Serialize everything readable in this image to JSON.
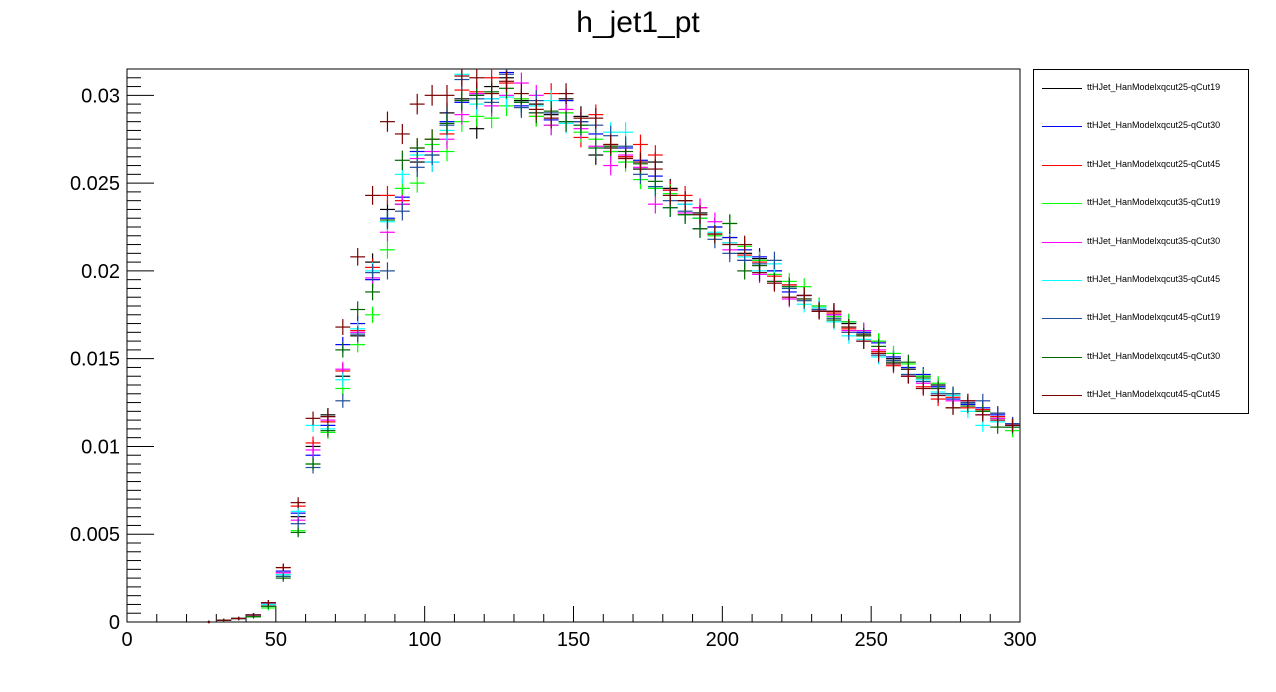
{
  "chart_data": {
    "type": "scatter",
    "title": "h_jet1_pt",
    "xlabel": "",
    "ylabel": "",
    "xlim": [
      0,
      300
    ],
    "ylim": [
      0,
      0.0315
    ],
    "x_ticks": [
      "0",
      "50",
      "100",
      "150",
      "200",
      "250",
      "300"
    ],
    "y_ticks": [
      "0",
      "0.005",
      "0.01",
      "0.015",
      "0.02",
      "0.025",
      "0.03"
    ],
    "x": [
      27.5,
      32.5,
      37.5,
      42.5,
      47.5,
      52.5,
      57.5,
      62.5,
      67.5,
      72.5,
      77.5,
      82.5,
      87.5,
      92.5,
      97.5,
      102.5,
      107.5,
      112.5,
      117.5,
      122.5,
      127.5,
      132.5,
      137.5,
      142.5,
      147.5,
      152.5,
      157.5,
      162.5,
      167.5,
      172.5,
      177.5,
      182.5,
      187.5,
      192.5,
      197.5,
      202.5,
      207.5,
      212.5,
      217.5,
      222.5,
      227.5,
      232.5,
      237.5,
      242.5,
      247.5,
      252.5,
      257.5,
      262.5,
      267.5,
      272.5,
      277.5,
      282.5,
      287.5,
      292.5,
      297.5
    ],
    "legend_position": "right",
    "grid": false,
    "series": [
      {
        "name": "ttHJet_HanModelxqcut25-qCut19",
        "color": "#000000",
        "values": [
          0,
          0.0001,
          0.0002,
          0.0004,
          0.001,
          0.0028,
          0.006,
          0.01,
          0.0118,
          0.014,
          0.0163,
          0.0205,
          0.0235,
          0.0238,
          0.0262,
          0.0266,
          0.029,
          0.0298,
          0.0281,
          0.0305,
          0.031,
          0.0297,
          0.0295,
          0.0289,
          0.0298,
          0.0288,
          0.0266,
          0.027,
          0.0265,
          0.0258,
          0.0262,
          0.0247,
          0.024,
          0.0233,
          0.0225,
          0.0219,
          0.021,
          0.0207,
          0.02,
          0.0192,
          0.0186,
          0.018,
          0.0177,
          0.017,
          0.0164,
          0.016,
          0.015,
          0.0144,
          0.014,
          0.0135,
          0.013,
          0.0124,
          0.0121,
          0.0119,
          0.0112
        ]
      },
      {
        "name": "ttHJet_HanModelxqcut25-qCut30",
        "color": "#0000ff",
        "values": [
          0,
          0.0001,
          0.0002,
          0.0004,
          0.0011,
          0.0029,
          0.0062,
          0.0095,
          0.0112,
          0.0158,
          0.017,
          0.0195,
          0.023,
          0.0242,
          0.0268,
          0.0262,
          0.0285,
          0.0296,
          0.03,
          0.0298,
          0.0313,
          0.0294,
          0.029,
          0.0286,
          0.0297,
          0.0285,
          0.0278,
          0.0268,
          0.027,
          0.0263,
          0.0254,
          0.0246,
          0.0238,
          0.023,
          0.0225,
          0.0219,
          0.0212,
          0.0208,
          0.02,
          0.0188,
          0.0186,
          0.0177,
          0.0175,
          0.0171,
          0.0165,
          0.0159,
          0.0151,
          0.0145,
          0.0141,
          0.0134,
          0.0127,
          0.0124,
          0.0122,
          0.0118,
          0.0112
        ]
      },
      {
        "name": "ttHJet_HanModelxqcut25-qCut45",
        "color": "#ff0000",
        "values": [
          0,
          0.0001,
          0.0002,
          0.0004,
          0.001,
          0.0031,
          0.0066,
          0.0102,
          0.0114,
          0.0143,
          0.0166,
          0.0202,
          0.0243,
          0.024,
          0.027,
          0.0275,
          0.0278,
          0.0303,
          0.0302,
          0.031,
          0.0307,
          0.0298,
          0.0288,
          0.0301,
          0.029,
          0.0276,
          0.0289,
          0.0272,
          0.0265,
          0.0272,
          0.0266,
          0.0246,
          0.0243,
          0.0236,
          0.0221,
          0.0216,
          0.0209,
          0.0205,
          0.0197,
          0.0192,
          0.0184,
          0.0178,
          0.0176,
          0.0167,
          0.0163,
          0.0154,
          0.0146,
          0.014,
          0.0134,
          0.0127,
          0.0128,
          0.0122,
          0.0121,
          0.0117,
          0.0113
        ]
      },
      {
        "name": "ttHJet_HanModelxqcut35-qCut19",
        "color": "#00ff00",
        "values": [
          0,
          0.0001,
          0.0002,
          0.0003,
          0.0008,
          0.0026,
          0.0052,
          0.009,
          0.0108,
          0.0133,
          0.0158,
          0.0175,
          0.0212,
          0.0247,
          0.025,
          0.0272,
          0.0268,
          0.0285,
          0.0288,
          0.0287,
          0.0294,
          0.0298,
          0.0288,
          0.0283,
          0.029,
          0.0279,
          0.0275,
          0.0268,
          0.0262,
          0.0252,
          0.0247,
          0.0244,
          0.0232,
          0.023,
          0.022,
          0.0227,
          0.0214,
          0.0206,
          0.0198,
          0.0194,
          0.0191,
          0.018,
          0.0174,
          0.0171,
          0.0166,
          0.016,
          0.0153,
          0.0147,
          0.014,
          0.0136,
          0.013,
          0.0125,
          0.012,
          0.0116,
          0.0109
        ]
      },
      {
        "name": "ttHJet_HanModelxqcut35-qCut30",
        "color": "#ff00ff",
        "values": [
          0,
          0.0001,
          0.0002,
          0.0004,
          0.001,
          0.0028,
          0.0058,
          0.0098,
          0.0115,
          0.0144,
          0.0165,
          0.0196,
          0.0222,
          0.0238,
          0.0264,
          0.0268,
          0.0275,
          0.0289,
          0.0301,
          0.0294,
          0.03,
          0.0307,
          0.03,
          0.0283,
          0.0292,
          0.0281,
          0.0271,
          0.026,
          0.0266,
          0.0259,
          0.0238,
          0.0236,
          0.0233,
          0.0236,
          0.0228,
          0.0212,
          0.0206,
          0.0198,
          0.0194,
          0.0184,
          0.0184,
          0.0178,
          0.0175,
          0.0166,
          0.0166,
          0.0155,
          0.0148,
          0.014,
          0.0136,
          0.0133,
          0.0126,
          0.0126,
          0.0118,
          0.0116,
          0.0113
        ]
      },
      {
        "name": "ttHJet_HanModelxqcut35-qCut45",
        "color": "#00ffff",
        "values": [
          0,
          0.0001,
          0.0002,
          0.0004,
          0.001,
          0.0027,
          0.0063,
          0.0112,
          0.011,
          0.0138,
          0.0167,
          0.02,
          0.0228,
          0.0255,
          0.0266,
          0.0262,
          0.028,
          0.0312,
          0.0295,
          0.0298,
          0.0299,
          0.0296,
          0.0294,
          0.0297,
          0.0284,
          0.0283,
          0.027,
          0.0279,
          0.0279,
          0.0262,
          0.0248,
          0.0236,
          0.0238,
          0.0232,
          0.0222,
          0.0216,
          0.0208,
          0.02,
          0.0204,
          0.019,
          0.0181,
          0.0179,
          0.0171,
          0.0163,
          0.0161,
          0.0151,
          0.0147,
          0.0141,
          0.0138,
          0.0131,
          0.0129,
          0.012,
          0.0112,
          0.0114,
          0.0111
        ]
      },
      {
        "name": "ttHJet_HanModelxqcut45-qCut19",
        "color": "#1f4e9a",
        "values": [
          0,
          0.0001,
          0.0002,
          0.0004,
          0.0009,
          0.0026,
          0.0056,
          0.0088,
          0.0117,
          0.0126,
          0.0164,
          0.0199,
          0.02,
          0.0234,
          0.0259,
          0.0266,
          0.0283,
          0.0309,
          0.0298,
          0.0296,
          0.0312,
          0.0293,
          0.0297,
          0.029,
          0.0285,
          0.0285,
          0.0283,
          0.0277,
          0.0271,
          0.0255,
          0.0248,
          0.024,
          0.0234,
          0.0224,
          0.0218,
          0.021,
          0.0206,
          0.0204,
          0.0206,
          0.019,
          0.0183,
          0.0178,
          0.0173,
          0.0165,
          0.016,
          0.0152,
          0.0149,
          0.0141,
          0.0137,
          0.013,
          0.013,
          0.0125,
          0.0126,
          0.0119,
          0.0113
        ]
      },
      {
        "name": "ttHJet_HanModelxqcut45-qCut30",
        "color": "#006600",
        "values": [
          0,
          0.0001,
          0.0002,
          0.0003,
          0.0009,
          0.0025,
          0.0051,
          0.009,
          0.0109,
          0.0155,
          0.0178,
          0.0188,
          0.0229,
          0.0263,
          0.027,
          0.0275,
          0.0284,
          0.0297,
          0.03,
          0.0302,
          0.0304,
          0.0296,
          0.029,
          0.0291,
          0.0285,
          0.0283,
          0.027,
          0.0271,
          0.0268,
          0.0261,
          0.0251,
          0.0236,
          0.0232,
          0.0224,
          0.0221,
          0.0227,
          0.02,
          0.0203,
          0.0194,
          0.0191,
          0.0184,
          0.0177,
          0.0172,
          0.0168,
          0.0163,
          0.0157,
          0.0148,
          0.0148,
          0.0139,
          0.0133,
          0.0122,
          0.0123,
          0.012,
          0.0111,
          0.0111
        ]
      },
      {
        "name": "ttHJet_HanModelxqcut45-qCut45",
        "color": "#7a0000",
        "values": [
          0,
          0.0001,
          0.0002,
          0.0004,
          0.0011,
          0.0031,
          0.0068,
          0.0116,
          0.0117,
          0.0168,
          0.0208,
          0.0243,
          0.0285,
          0.0278,
          0.0295,
          0.03,
          0.03,
          0.0311,
          0.031,
          0.0301,
          0.0308,
          0.0301,
          0.0292,
          0.0287,
          0.0301,
          0.0287,
          0.0287,
          0.0272,
          0.0264,
          0.0262,
          0.0258,
          0.0243,
          0.024,
          0.0232,
          0.0221,
          0.0215,
          0.0215,
          0.0199,
          0.0193,
          0.0185,
          0.0186,
          0.0177,
          0.0177,
          0.0168,
          0.016,
          0.0153,
          0.0147,
          0.014,
          0.0133,
          0.0129,
          0.0122,
          0.0126,
          0.0118,
          0.0115,
          0.0112
        ]
      }
    ]
  }
}
